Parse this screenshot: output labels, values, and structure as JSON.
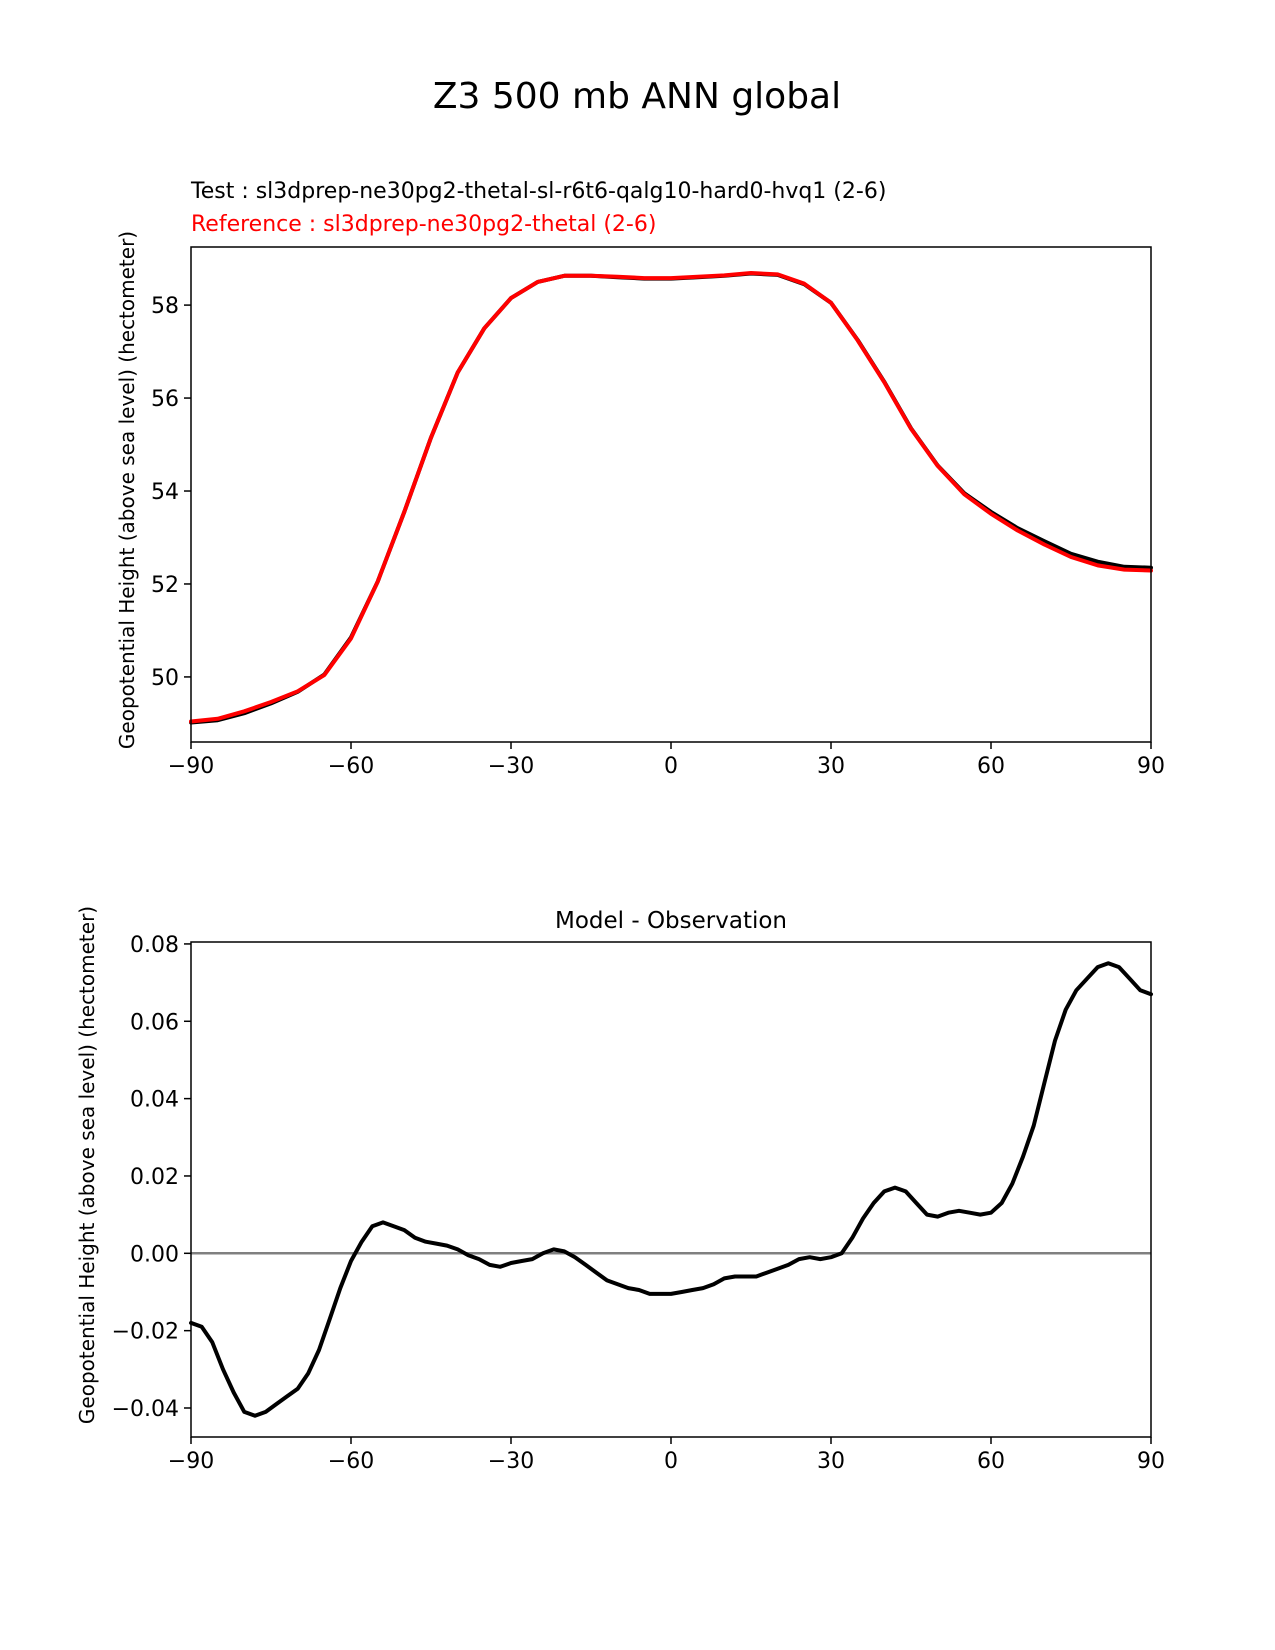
{
  "figure_title": "Z3 500 mb ANN global",
  "chart_data": [
    {
      "type": "line",
      "test_label": "Test : sl3dprep-ne30pg2-thetal-sl-r6t6-qalg10-hard0-hvq1 (2-6)",
      "reference_label": "Reference : sl3dprep-ne30pg2-thetal (2-6)",
      "ylabel": "Geopotential Height (above sea level) (hectometer)",
      "xlabel": "",
      "xlim": [
        -90,
        90
      ],
      "ylim": [
        48.6,
        59.25
      ],
      "x_ticks": [
        -90,
        -60,
        -30,
        0,
        30,
        60,
        90
      ],
      "x_tick_labels": [
        "−90",
        "−60",
        "−30",
        "0",
        "30",
        "60",
        "90"
      ],
      "y_ticks": [
        50,
        52,
        54,
        56,
        58
      ],
      "y_tick_labels": [
        "50",
        "52",
        "54",
        "56",
        "58"
      ],
      "colors": {
        "test": "#000000",
        "reference": "#ff0000"
      },
      "series": [
        {
          "name": "Test",
          "x": [
            -90,
            -85,
            -80,
            -75,
            -70,
            -65,
            -60,
            -55,
            -50,
            -45,
            -40,
            -35,
            -30,
            -25,
            -20,
            -15,
            -10,
            -5,
            0,
            5,
            10,
            15,
            20,
            25,
            30,
            35,
            40,
            45,
            50,
            55,
            60,
            65,
            70,
            75,
            80,
            85,
            90
          ],
          "y": [
            49.02,
            49.07,
            49.22,
            49.43,
            49.68,
            50.05,
            50.85,
            52.05,
            53.55,
            55.15,
            56.55,
            57.5,
            58.15,
            58.5,
            58.63,
            58.63,
            58.6,
            58.57,
            58.57,
            58.6,
            58.63,
            58.68,
            58.65,
            58.45,
            58.05,
            57.25,
            56.35,
            55.35,
            54.55,
            53.95,
            53.55,
            53.2,
            52.92,
            52.65,
            52.48,
            52.37,
            52.35
          ]
        },
        {
          "name": "Reference",
          "x": [
            -90,
            -85,
            -80,
            -75,
            -70,
            -65,
            -60,
            -55,
            -50,
            -45,
            -40,
            -35,
            -30,
            -25,
            -20,
            -15,
            -10,
            -5,
            0,
            5,
            10,
            15,
            20,
            25,
            30,
            35,
            40,
            45,
            50,
            55,
            60,
            65,
            70,
            75,
            80,
            85,
            90
          ],
          "y": [
            49.04,
            49.1,
            49.26,
            49.46,
            49.69,
            50.04,
            50.83,
            52.05,
            53.55,
            55.15,
            56.55,
            57.5,
            58.15,
            58.5,
            58.63,
            58.63,
            58.61,
            58.58,
            58.58,
            58.61,
            58.64,
            58.69,
            58.66,
            58.46,
            58.05,
            57.24,
            56.34,
            55.34,
            54.54,
            53.93,
            53.51,
            53.15,
            52.85,
            52.58,
            52.4,
            52.31,
            52.29
          ]
        }
      ]
    },
    {
      "type": "line",
      "title": "Model - Observation",
      "ylabel": "Geopotential Height (above sea level) (hectometer)",
      "xlabel": "",
      "xlim": [
        -90,
        90
      ],
      "ylim": [
        -0.0475,
        0.0805
      ],
      "zero_line": true,
      "x_ticks": [
        -90,
        -60,
        -30,
        0,
        30,
        60,
        90
      ],
      "x_tick_labels": [
        "−90",
        "−60",
        "−30",
        "0",
        "30",
        "60",
        "90"
      ],
      "y_ticks": [
        -0.04,
        -0.02,
        0.0,
        0.02,
        0.04,
        0.06,
        0.08
      ],
      "y_tick_labels": [
        "−0.04",
        "−0.02",
        "0.00",
        "0.02",
        "0.04",
        "0.06",
        "0.08"
      ],
      "colors": {
        "line": "#000000",
        "zero_line": "#808080"
      },
      "series": [
        {
          "x": [
            -90,
            -88,
            -86,
            -84,
            -82,
            -80,
            -78,
            -76,
            -74,
            -72,
            -70,
            -68,
            -66,
            -64,
            -62,
            -60,
            -58,
            -56,
            -54,
            -52,
            -50,
            -48,
            -46,
            -44,
            -42,
            -40,
            -38,
            -36,
            -34,
            -32,
            -30,
            -28,
            -26,
            -24,
            -22,
            -20,
            -18,
            -16,
            -14,
            -12,
            -10,
            -8,
            -6,
            -4,
            -2,
            0,
            2,
            4,
            6,
            8,
            10,
            12,
            14,
            16,
            18,
            20,
            22,
            24,
            26,
            28,
            30,
            32,
            34,
            36,
            38,
            40,
            42,
            44,
            46,
            48,
            50,
            52,
            54,
            56,
            58,
            60,
            62,
            64,
            66,
            68,
            70,
            72,
            74,
            76,
            78,
            80,
            82,
            84,
            86,
            88,
            90
          ],
          "y": [
            -0.018,
            -0.019,
            -0.023,
            -0.03,
            -0.036,
            -0.041,
            -0.042,
            -0.041,
            -0.039,
            -0.037,
            -0.035,
            -0.031,
            -0.025,
            -0.017,
            -0.009,
            -0.002,
            0.003,
            0.007,
            0.008,
            0.007,
            0.006,
            0.004,
            0.003,
            0.0025,
            0.002,
            0.001,
            -0.0005,
            -0.0015,
            -0.003,
            -0.0035,
            -0.0025,
            -0.002,
            -0.0015,
            0.0,
            0.001,
            0.0005,
            -0.001,
            -0.003,
            -0.005,
            -0.007,
            -0.008,
            -0.009,
            -0.0095,
            -0.0105,
            -0.0105,
            -0.0105,
            -0.01,
            -0.0095,
            -0.009,
            -0.008,
            -0.0065,
            -0.006,
            -0.006,
            -0.006,
            -0.005,
            -0.004,
            -0.003,
            -0.0015,
            -0.001,
            -0.0015,
            -0.001,
            0.0,
            0.004,
            0.009,
            0.013,
            0.016,
            0.017,
            0.016,
            0.013,
            0.01,
            0.0095,
            0.0105,
            0.011,
            0.0105,
            0.01,
            0.0105,
            0.013,
            0.018,
            0.025,
            0.033,
            0.044,
            0.055,
            0.063,
            0.068,
            0.071,
            0.074,
            0.075,
            0.074,
            0.071,
            0.068,
            0.067
          ]
        }
      ]
    }
  ]
}
